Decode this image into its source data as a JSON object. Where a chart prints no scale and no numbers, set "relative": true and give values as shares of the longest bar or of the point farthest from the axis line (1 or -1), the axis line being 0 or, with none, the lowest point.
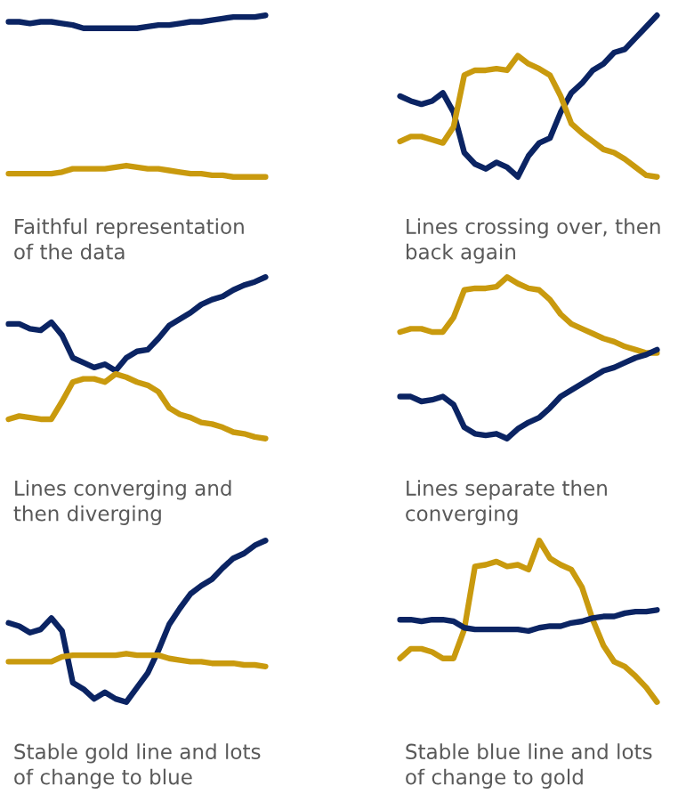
{
  "chart_data": [
    {
      "type": "line",
      "relative": true,
      "annotations": [
        "Faithful representation\nof the data"
      ],
      "categories": [
        null,
        null,
        null,
        null,
        null,
        null,
        null,
        null,
        null,
        null,
        null,
        null,
        null,
        null,
        null,
        null,
        null,
        null,
        null,
        null,
        null,
        null,
        null,
        null,
        null
      ],
      "series": [
        {
          "color": "#0b2463",
          "values": [
            0.96,
            0.96,
            0.95,
            0.96,
            0.96,
            0.95,
            0.94,
            0.92,
            0.92,
            0.92,
            0.92,
            0.92,
            0.92,
            0.93,
            0.94,
            0.94,
            0.95,
            0.96,
            0.96,
            0.97,
            0.98,
            0.99,
            0.99,
            0.99,
            1.0
          ]
        },
        {
          "color": "#c99a0e",
          "values": [
            0.02,
            0.02,
            0.02,
            0.02,
            0.02,
            0.03,
            0.05,
            0.05,
            0.05,
            0.05,
            0.06,
            0.07,
            0.06,
            0.05,
            0.05,
            0.04,
            0.03,
            0.02,
            0.02,
            0.01,
            0.01,
            0.0,
            0.0,
            0.0,
            0.0
          ]
        }
      ]
    },
    {
      "type": "line",
      "relative": true,
      "annotations": [
        "Lines crossing over, then\nback again"
      ],
      "categories": [
        null,
        null,
        null,
        null,
        null,
        null,
        null,
        null,
        null,
        null,
        null,
        null,
        null,
        null,
        null,
        null,
        null,
        null,
        null,
        null,
        null,
        null,
        null,
        null,
        null
      ],
      "series": [
        {
          "color": "#0b2463",
          "values": [
            0.5,
            0.47,
            0.45,
            0.47,
            0.52,
            0.4,
            0.15,
            0.08,
            0.05,
            0.09,
            0.06,
            0.0,
            0.13,
            0.21,
            0.24,
            0.4,
            0.52,
            0.58,
            0.66,
            0.7,
            0.77,
            0.79,
            0.86,
            0.93,
            1.0
          ]
        },
        {
          "color": "#c99a0e",
          "values": [
            0.22,
            0.25,
            0.25,
            0.23,
            0.21,
            0.31,
            0.63,
            0.66,
            0.66,
            0.67,
            0.66,
            0.75,
            0.7,
            0.67,
            0.63,
            0.5,
            0.33,
            0.27,
            0.22,
            0.17,
            0.15,
            0.11,
            0.06,
            0.01,
            0.0
          ]
        }
      ]
    },
    {
      "type": "line",
      "relative": true,
      "annotations": [
        "Lines converging and\nthen diverging"
      ],
      "categories": [
        null,
        null,
        null,
        null,
        null,
        null,
        null,
        null,
        null,
        null,
        null,
        null,
        null,
        null,
        null,
        null,
        null,
        null,
        null,
        null,
        null,
        null,
        null,
        null,
        null
      ],
      "series": [
        {
          "color": "#0b2463",
          "values": [
            0.71,
            0.71,
            0.68,
            0.67,
            0.72,
            0.64,
            0.5,
            0.47,
            0.44,
            0.46,
            0.42,
            0.5,
            0.54,
            0.55,
            0.62,
            0.7,
            0.74,
            0.78,
            0.83,
            0.86,
            0.88,
            0.92,
            0.95,
            0.97,
            1.0
          ]
        },
        {
          "color": "#c99a0e",
          "values": [
            0.12,
            0.14,
            0.13,
            0.12,
            0.12,
            0.23,
            0.35,
            0.37,
            0.37,
            0.35,
            0.4,
            0.38,
            0.35,
            0.33,
            0.29,
            0.19,
            0.15,
            0.13,
            0.1,
            0.09,
            0.07,
            0.04,
            0.03,
            0.01,
            0.0
          ]
        }
      ]
    },
    {
      "type": "line",
      "relative": true,
      "annotations": [
        "Lines separate then\nconverging"
      ],
      "categories": [
        null,
        null,
        null,
        null,
        null,
        null,
        null,
        null,
        null,
        null,
        null,
        null,
        null,
        null,
        null,
        null,
        null,
        null,
        null,
        null,
        null,
        null,
        null,
        null,
        null
      ],
      "series": [
        {
          "color": "#c99a0e",
          "values": [
            0.66,
            0.68,
            0.68,
            0.66,
            0.66,
            0.75,
            0.92,
            0.93,
            0.93,
            0.94,
            1.0,
            0.96,
            0.93,
            0.92,
            0.86,
            0.77,
            0.71,
            0.68,
            0.65,
            0.62,
            0.6,
            0.57,
            0.55,
            0.53,
            0.53
          ]
        },
        {
          "color": "#0b2463",
          "values": [
            0.26,
            0.26,
            0.23,
            0.24,
            0.26,
            0.21,
            0.07,
            0.03,
            0.02,
            0.03,
            0.0,
            0.06,
            0.1,
            0.13,
            0.19,
            0.26,
            0.3,
            0.34,
            0.38,
            0.42,
            0.44,
            0.47,
            0.5,
            0.52,
            0.55
          ]
        }
      ]
    },
    {
      "type": "line",
      "relative": true,
      "annotations": [
        "Stable gold line and lots\nof change to blue"
      ],
      "categories": [
        null,
        null,
        null,
        null,
        null,
        null,
        null,
        null,
        null,
        null,
        null,
        null,
        null,
        null,
        null,
        null,
        null,
        null,
        null,
        null,
        null,
        null,
        null,
        null,
        null
      ],
      "series": [
        {
          "color": "#0b2463",
          "values": [
            0.49,
            0.47,
            0.43,
            0.45,
            0.52,
            0.44,
            0.12,
            0.08,
            0.02,
            0.06,
            0.02,
            0.0,
            0.09,
            0.18,
            0.32,
            0.48,
            0.58,
            0.67,
            0.72,
            0.76,
            0.83,
            0.89,
            0.92,
            0.97,
            1.0
          ]
        },
        {
          "color": "#c99a0e",
          "values": [
            0.25,
            0.25,
            0.25,
            0.25,
            0.25,
            0.28,
            0.29,
            0.29,
            0.29,
            0.29,
            0.29,
            0.3,
            0.29,
            0.29,
            0.29,
            0.27,
            0.26,
            0.25,
            0.25,
            0.24,
            0.24,
            0.24,
            0.23,
            0.23,
            0.22
          ]
        }
      ]
    },
    {
      "type": "line",
      "relative": true,
      "annotations": [
        "Stable blue line and lots\nof change to gold"
      ],
      "categories": [
        null,
        null,
        null,
        null,
        null,
        null,
        null,
        null,
        null,
        null,
        null,
        null,
        null,
        null,
        null,
        null,
        null,
        null,
        null,
        null,
        null,
        null,
        null,
        null,
        null
      ],
      "series": [
        {
          "color": "#c99a0e",
          "values": [
            0.27,
            0.33,
            0.33,
            0.31,
            0.27,
            0.27,
            0.45,
            0.84,
            0.85,
            0.87,
            0.84,
            0.85,
            0.82,
            1.0,
            0.89,
            0.85,
            0.82,
            0.71,
            0.51,
            0.35,
            0.25,
            0.22,
            0.16,
            0.09,
            0.0
          ]
        },
        {
          "color": "#0b2463",
          "values": [
            0.51,
            0.51,
            0.5,
            0.51,
            0.51,
            0.5,
            0.46,
            0.45,
            0.45,
            0.45,
            0.45,
            0.45,
            0.44,
            0.46,
            0.47,
            0.47,
            0.49,
            0.5,
            0.52,
            0.53,
            0.53,
            0.55,
            0.56,
            0.56,
            0.57
          ]
        }
      ]
    }
  ]
}
